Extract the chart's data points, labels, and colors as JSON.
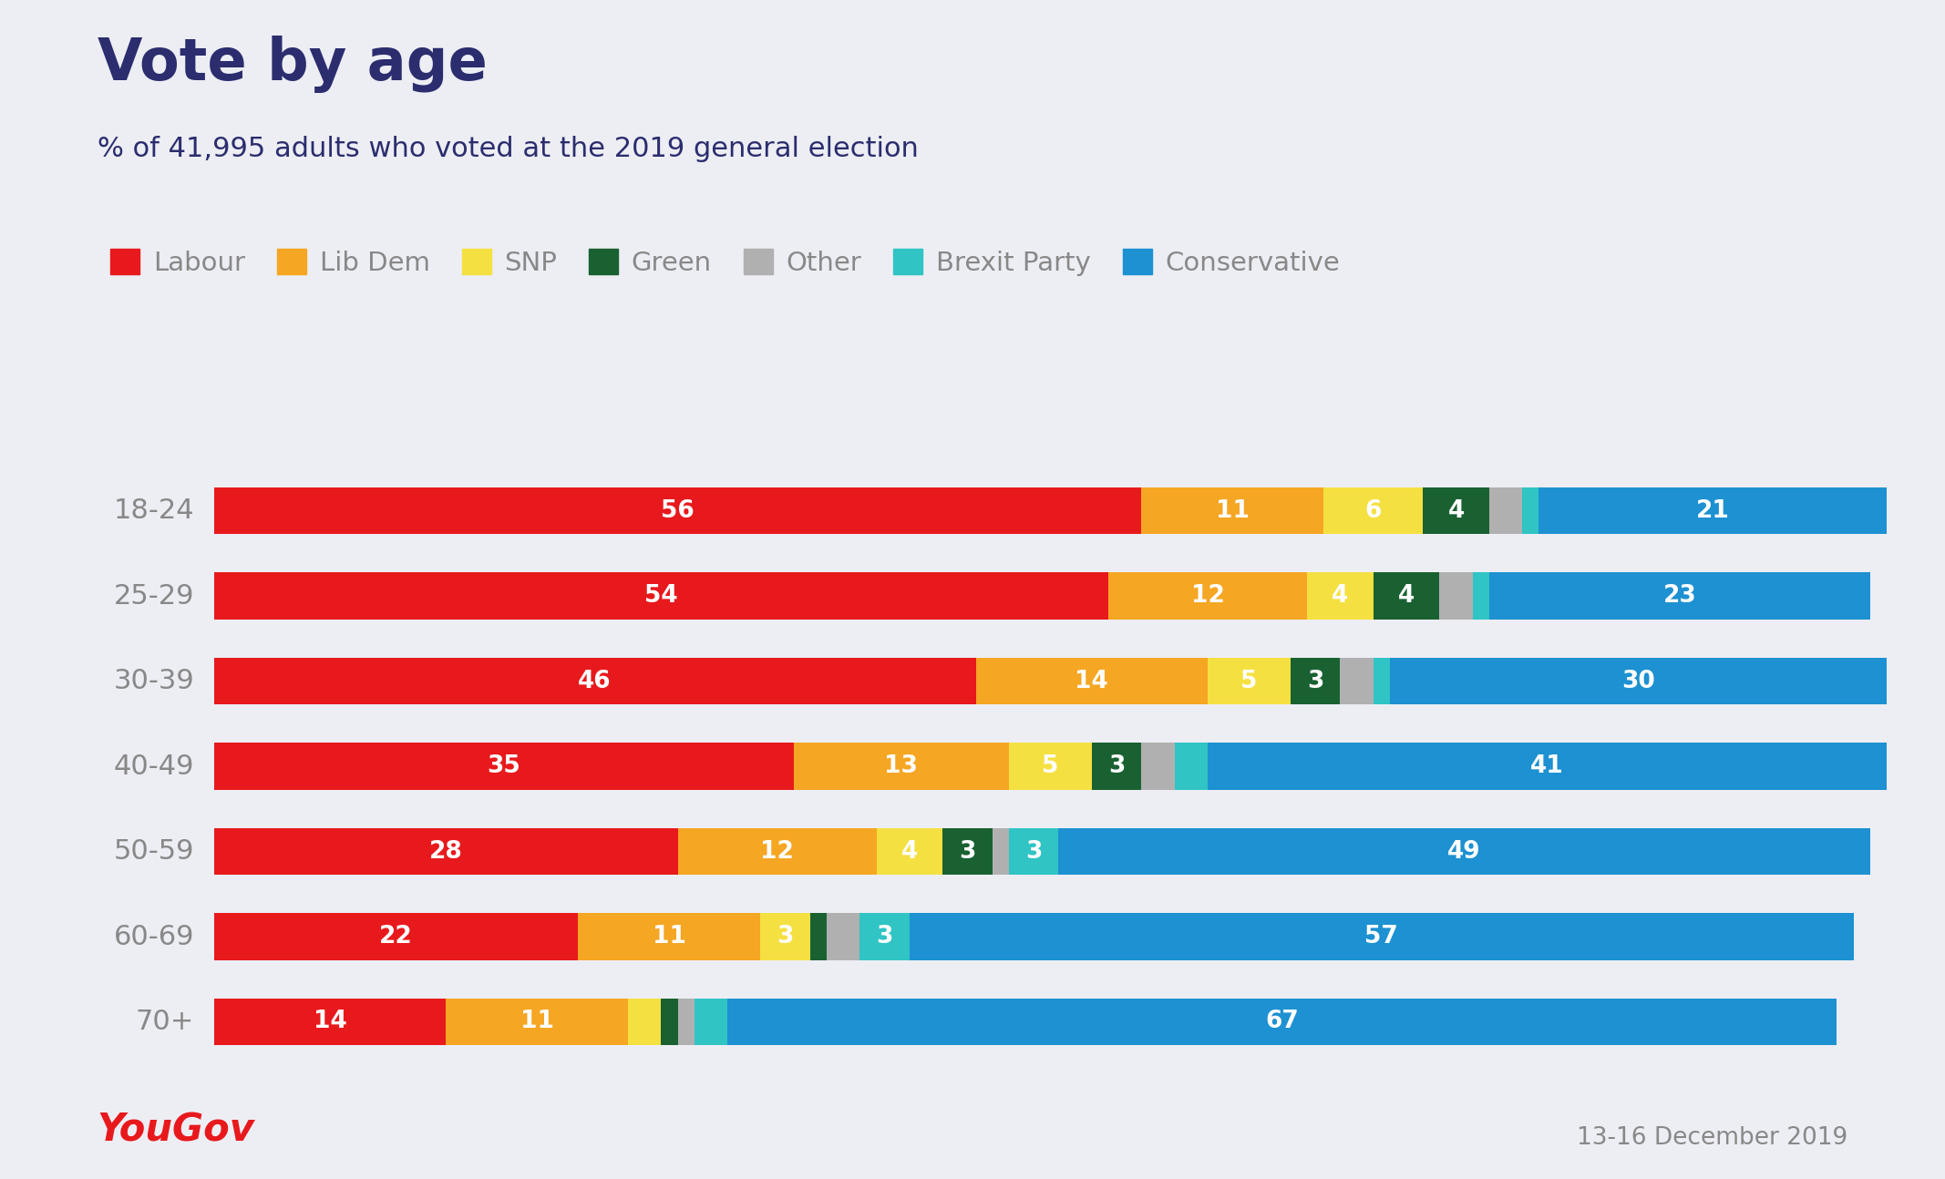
{
  "title": "Vote by age",
  "subtitle": "% of 41,995 adults who voted at the 2019 general election",
  "yougov_text": "YouGov",
  "date_text": "13-16 December 2019",
  "age_groups": [
    "18-24",
    "25-29",
    "30-39",
    "40-49",
    "50-59",
    "60-69",
    "70+"
  ],
  "parties": [
    "Labour",
    "Lib Dem",
    "SNP",
    "Green",
    "Other",
    "Brexit Party",
    "Conservative"
  ],
  "colors": {
    "Labour": "#e8191c",
    "Lib Dem": "#f5a623",
    "SNP": "#f5e042",
    "Green": "#1a6132",
    "Other": "#b0b0b0",
    "Brexit Party": "#30c4c4",
    "Conservative": "#1d91d1"
  },
  "data": {
    "18-24": [
      56,
      11,
      6,
      4,
      2,
      1,
      21
    ],
    "25-29": [
      54,
      12,
      4,
      4,
      2,
      1,
      23
    ],
    "30-39": [
      46,
      14,
      5,
      3,
      2,
      1,
      30
    ],
    "40-49": [
      35,
      13,
      5,
      3,
      2,
      2,
      41
    ],
    "50-59": [
      28,
      12,
      4,
      3,
      1,
      3,
      49
    ],
    "60-69": [
      22,
      11,
      3,
      1,
      2,
      3,
      57
    ],
    "70+": [
      14,
      11,
      2,
      1,
      1,
      2,
      67
    ]
  },
  "show_labels": {
    "18-24": [
      true,
      true,
      true,
      true,
      false,
      false,
      true
    ],
    "25-29": [
      true,
      true,
      true,
      true,
      false,
      false,
      true
    ],
    "30-39": [
      true,
      true,
      true,
      true,
      false,
      false,
      true
    ],
    "40-49": [
      true,
      true,
      true,
      true,
      false,
      false,
      true
    ],
    "50-59": [
      true,
      true,
      true,
      true,
      false,
      true,
      true
    ],
    "60-69": [
      true,
      true,
      true,
      false,
      false,
      true,
      true
    ],
    "70+": [
      true,
      true,
      false,
      false,
      false,
      false,
      true
    ]
  },
  "background_color": "#edeef4",
  "title_color": "#2b2d6e",
  "legend_text_color": "#888888",
  "age_label_color": "#888888",
  "yougov_color": "#e8191c",
  "date_color": "#888888",
  "xlim": 101
}
